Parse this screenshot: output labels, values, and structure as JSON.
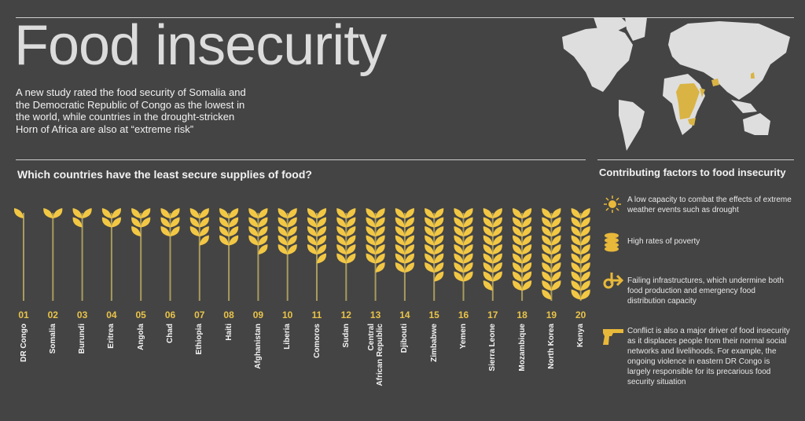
{
  "header": {
    "title": "Food insecurity",
    "intro": "A new study rated the food security of Somalia and the Democratic Republic of Congo as the lowest in the world, while countries in the drought-stricken Horn of Africa are also at “extreme risk”"
  },
  "question": "Which countries have the least secure supplies of food?",
  "colors": {
    "background": "#444444",
    "grain": "#f2c744",
    "stalk": "#a99b5f",
    "rank": "#e9c34a",
    "map_land": "#dedede",
    "map_highlight": "#d9b444"
  },
  "chart_data": {
    "type": "pictogram",
    "title": "Which countries have the least secure supplies of food?",
    "categories": [
      "DR Congo",
      "Somalia",
      "Burundi",
      "Eritrea",
      "Angola",
      "Chad",
      "Ethiopia",
      "Haiti",
      "Afghanistan",
      "Liberia",
      "Comoros",
      "Sudan",
      "Central African Republic",
      "Djibouti",
      "Zimbabwe",
      "Yemen",
      "Sierra Leone",
      "Mozambique",
      "North Korea",
      "Kenya"
    ],
    "ranks": [
      "01",
      "02",
      "03",
      "04",
      "05",
      "06",
      "07",
      "08",
      "09",
      "10",
      "11",
      "12",
      "13",
      "14",
      "15",
      "16",
      "17",
      "18",
      "19",
      "20"
    ],
    "values": [
      1,
      2,
      3,
      4,
      5,
      6,
      7,
      8,
      9,
      10,
      11,
      12,
      13,
      14,
      15,
      16,
      17,
      18,
      19,
      20
    ],
    "unit": "grains per stalk (rank)"
  },
  "country_labels": [
    "DR Congo",
    "Somalia",
    "Burundi",
    "Eritrea",
    "Angola",
    "Chad",
    "Ethiopia",
    "Haiti",
    "Afghanistan",
    "Liberia",
    "Comoros",
    "Sudan",
    "Central\nAfrican Republic",
    "Djibouti",
    "Zimbabwe",
    "Yemen",
    "Sierra Leone",
    "Mozambique",
    "North Korea",
    "Kenya"
  ],
  "factors": {
    "title": "Contributing factors to food insecurity",
    "items": [
      {
        "icon": "sun-icon",
        "text": "A low capacity to combat the effects of extreme weather events such as drought"
      },
      {
        "icon": "coins-icon",
        "text": "High rates of poverty"
      },
      {
        "icon": "broken-road-arrow-icon",
        "text": "Failing infrastructures, which undermine both food production and emergency food distribution capacity"
      },
      {
        "icon": "revolver-icon",
        "text": "Conflict is also a major driver of food insecurity as it displaces people from their normal social networks and livelihoods. For example, the ongoing violence in eastern DR Congo is largely responsible for its precarious food security situation"
      }
    ]
  }
}
